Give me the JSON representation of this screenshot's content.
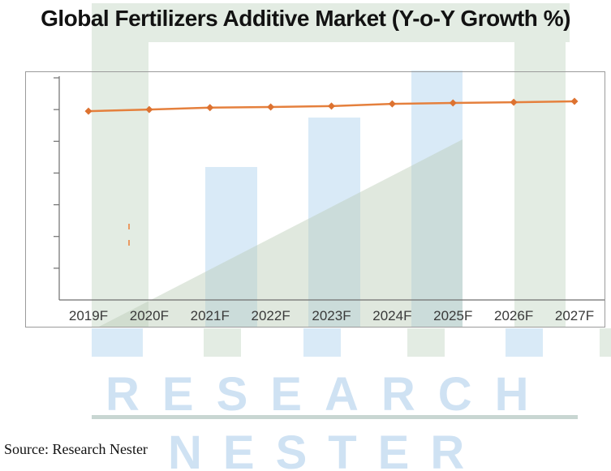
{
  "title": {
    "text": "Global Fertilizers Additive Market (Y-o-Y Growth %)"
  },
  "source": {
    "label": "Source: Research Nester"
  },
  "watermark": {
    "line1": "RESEARCH",
    "line2": "NESTER",
    "text_color": "#cfe2f3",
    "green": "#e3ece3",
    "blue": "#d9eaf7",
    "underline_color": "#c8d6d2",
    "triangle_color": "rgba(186,205,182,0.45)"
  },
  "artifacts": {
    "stray_mark_color": "#ea9a62"
  },
  "chart_data": {
    "type": "line",
    "title": "Global Fertilizers Additive Market (Y-o-Y Growth %)",
    "categories": [
      "2019F",
      "2020F",
      "2021F",
      "2022F",
      "2023F",
      "2024F",
      "2025F",
      "2026F",
      "2027F"
    ],
    "series": [
      {
        "name": "Y-o-Y Growth %",
        "color": "#e5803d",
        "marker": "diamond",
        "marker_color": "#dd7230",
        "values": [
          5.95,
          6.0,
          6.06,
          6.08,
          6.11,
          6.18,
          6.21,
          6.23,
          6.26
        ]
      }
    ],
    "xlabel": "",
    "ylabel": "",
    "y_axis": {
      "ticks": 7,
      "tick_labels_visible": false,
      "note": "Y-axis ticks are unlabeled in the source image; series values are estimated in axis tick units above the baseline."
    },
    "ylim": [
      0,
      7.2
    ],
    "grid": false,
    "legend": false,
    "axis_color": "#6f6f6f",
    "label_color": "#3a3a3a"
  }
}
